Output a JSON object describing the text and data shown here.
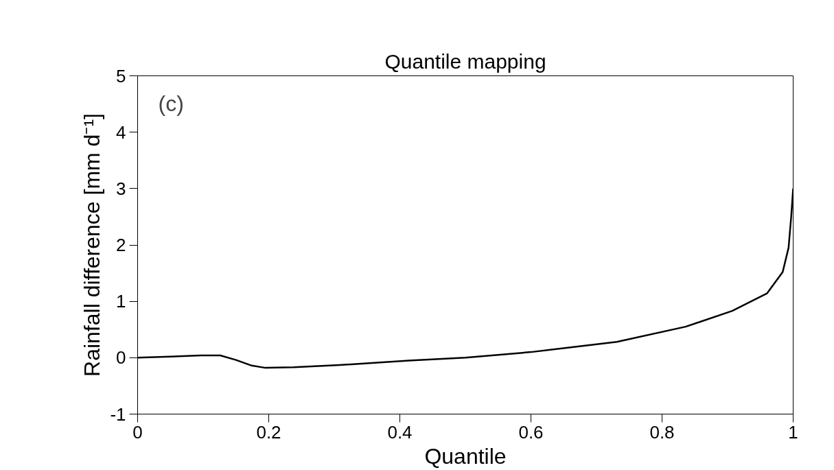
{
  "chart_data": {
    "type": "line",
    "title": "Quantile mapping",
    "xlabel": "Quantile",
    "ylabel": "Rainfall difference [mm d⁻¹]",
    "annotations": [
      "(c)"
    ],
    "x": [
      0,
      0.05,
      0.097,
      0.126,
      0.15,
      0.174,
      0.195,
      0.238,
      0.308,
      0.414,
      0.5,
      0.6,
      0.731,
      0.836,
      0.907,
      0.96,
      0.984,
      0.993,
      0.997,
      1.0
    ],
    "series": [
      {
        "color": "#000000",
        "values": [
          0,
          0.02,
          0.04,
          0.04,
          -0.04,
          -0.14,
          -0.18,
          -0.17,
          -0.13,
          -0.05,
          0.0,
          0.1,
          0.28,
          0.55,
          0.83,
          1.14,
          1.52,
          1.95,
          2.5,
          3.0
        ]
      }
    ],
    "xlim": [
      0,
      1
    ],
    "ylim": [
      -1,
      5
    ],
    "xticks": [
      0,
      0.2,
      0.4,
      0.6,
      0.8,
      1
    ],
    "yticks": [
      -1,
      0,
      1,
      2,
      3,
      4,
      5
    ],
    "grid": false,
    "marker": "none",
    "line_style": "solid"
  }
}
